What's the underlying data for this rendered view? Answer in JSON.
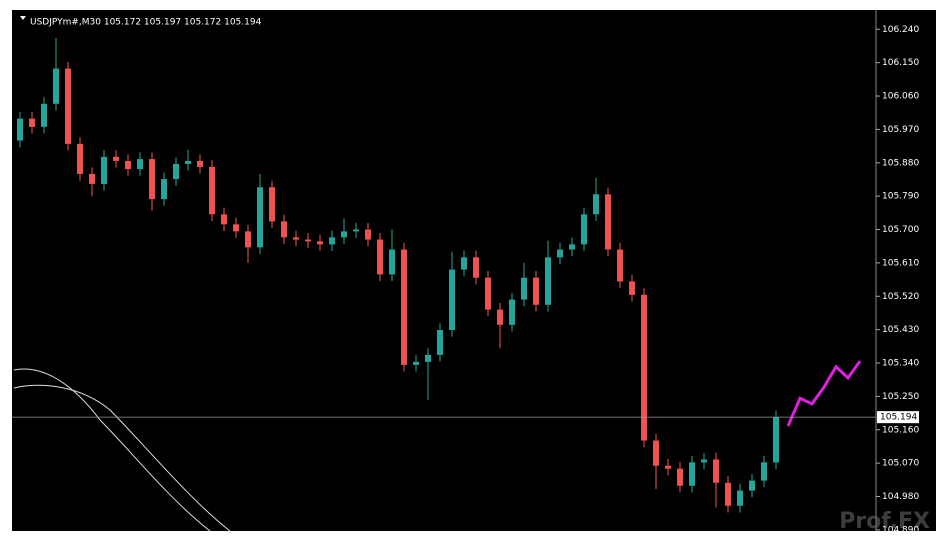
{
  "chart_data": {
    "type": "candlestick",
    "title": "USDJPYm#,M30  105.172 105.197 105.172 105.194",
    "watermark": "Prof.FX",
    "up_color": "#26a69a",
    "down_color": "#ef5350",
    "forecast_color": "#e020e0",
    "ylim": [
      104.887,
      106.292
    ],
    "yticks": [
      {
        "value": 106.24,
        "label": "106.240"
      },
      {
        "value": 106.15,
        "label": "106.150"
      },
      {
        "value": 106.06,
        "label": "106.060"
      },
      {
        "value": 105.97,
        "label": "105.970"
      },
      {
        "value": 105.88,
        "label": "105.880"
      },
      {
        "value": 105.79,
        "label": "105.790"
      },
      {
        "value": 105.7,
        "label": "105.700"
      },
      {
        "value": 105.61,
        "label": "105.610"
      },
      {
        "value": 105.52,
        "label": "105.520"
      },
      {
        "value": 105.43,
        "label": "105.430"
      },
      {
        "value": 105.34,
        "label": "105.340"
      },
      {
        "value": 105.25,
        "label": "105.250"
      },
      {
        "value": 105.16,
        "label": "105.160"
      },
      {
        "value": 105.07,
        "label": "105.070"
      },
      {
        "value": 104.98,
        "label": "104.980"
      },
      {
        "value": 104.89,
        "label": "104.890"
      }
    ],
    "current_price": {
      "value": 105.194,
      "label": "105.194"
    },
    "open": [
      105.94,
      105.999,
      105.977,
      106.039,
      106.134,
      105.931,
      105.85,
      105.823,
      105.896,
      105.885,
      105.863,
      105.89,
      105.782,
      105.836,
      105.877,
      105.885,
      105.869,
      105.741,
      105.714,
      105.695,
      105.652,
      105.814,
      105.722,
      105.679,
      105.673,
      105.668,
      105.66,
      105.679,
      105.695,
      105.7,
      105.673,
      105.579,
      105.646,
      105.335,
      105.343,
      105.362,
      105.429,
      105.592,
      105.625,
      105.57,
      105.484,
      105.443,
      105.511,
      105.57,
      105.497,
      105.625,
      105.646,
      105.66,
      105.741,
      105.795,
      105.646,
      105.56,
      105.524,
      105.131,
      105.063,
      105.055,
      105.009,
      105.072,
      105.08,
      105.017,
      104.955,
      104.996,
      105.023,
      105.072
    ],
    "high": [
      106.017,
      106.017,
      106.057,
      106.216,
      106.152,
      105.949,
      105.868,
      105.914,
      105.914,
      105.903,
      105.908,
      105.908,
      105.854,
      105.895,
      105.915,
      105.903,
      105.887,
      105.759,
      105.732,
      105.713,
      105.85,
      105.832,
      105.74,
      105.697,
      105.691,
      105.686,
      105.697,
      105.73,
      105.718,
      105.718,
      105.691,
      105.7,
      105.664,
      105.361,
      105.38,
      105.447,
      105.64,
      105.643,
      105.643,
      105.588,
      105.502,
      105.529,
      105.61,
      105.588,
      105.67,
      105.664,
      105.678,
      105.759,
      105.84,
      105.813,
      105.664,
      105.578,
      105.542,
      105.149,
      105.081,
      105.073,
      105.09,
      105.098,
      105.098,
      105.035,
      105.014,
      105.041,
      105.09,
      105.212
    ],
    "low": [
      105.922,
      105.959,
      105.959,
      106.021,
      105.913,
      105.832,
      105.79,
      105.805,
      105.867,
      105.845,
      105.845,
      105.75,
      105.764,
      105.818,
      105.859,
      105.851,
      105.723,
      105.696,
      105.677,
      105.61,
      105.634,
      105.704,
      105.661,
      105.655,
      105.65,
      105.642,
      105.642,
      105.661,
      105.677,
      105.655,
      105.561,
      105.561,
      105.317,
      105.317,
      105.24,
      105.344,
      105.411,
      105.574,
      105.552,
      105.466,
      105.38,
      105.425,
      105.493,
      105.479,
      105.479,
      105.607,
      105.628,
      105.642,
      105.723,
      105.628,
      105.542,
      105.506,
      105.113,
      105.0,
      105.037,
      104.991,
      104.991,
      105.054,
      104.95,
      104.937,
      104.937,
      104.978,
      105.005,
      105.054
    ],
    "close": [
      105.999,
      105.977,
      106.039,
      106.134,
      105.931,
      105.85,
      105.823,
      105.896,
      105.885,
      105.863,
      105.89,
      105.782,
      105.836,
      105.877,
      105.885,
      105.869,
      105.741,
      105.714,
      105.695,
      105.652,
      105.814,
      105.722,
      105.679,
      105.673,
      105.668,
      105.66,
      105.679,
      105.695,
      105.7,
      105.673,
      105.579,
      105.646,
      105.335,
      105.343,
      105.362,
      105.429,
      105.592,
      105.625,
      105.57,
      105.484,
      105.443,
      105.511,
      105.57,
      105.497,
      105.625,
      105.646,
      105.66,
      105.741,
      105.795,
      105.646,
      105.56,
      105.524,
      105.131,
      105.063,
      105.055,
      105.009,
      105.072,
      105.08,
      105.017,
      104.955,
      104.996,
      105.023,
      105.072,
      105.194
    ],
    "forecast": [
      105.17,
      105.245,
      105.23,
      105.275,
      105.33,
      105.3,
      105.345
    ]
  }
}
